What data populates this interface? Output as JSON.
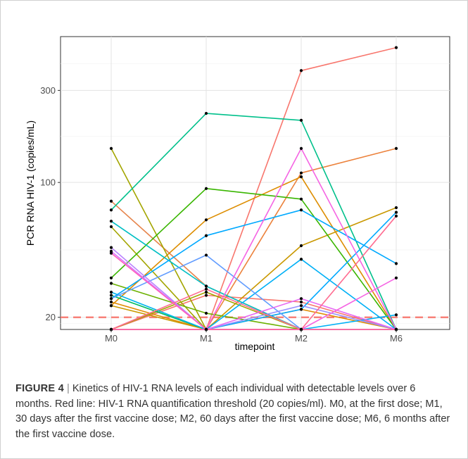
{
  "chart_data": {
    "type": "line",
    "xlabel": "timepoint",
    "ylabel": "PCR RNA HIV-1 (copies/mL)",
    "y_scale": "log10",
    "ylim": [
      17.3,
      570
    ],
    "y_ticks": [
      20,
      100,
      300
    ],
    "categories": [
      "M0",
      "M1",
      "M2",
      "M6"
    ],
    "grid": true,
    "threshold": {
      "value": 20,
      "color": "#F8766D",
      "style": "dashed"
    },
    "series": [
      {
        "color": "#F8766D",
        "values": [
          17.3,
          17.3,
          380,
          500
        ]
      },
      {
        "color": "#F8766D",
        "values": [
          17.3,
          26,
          24,
          17.3
        ]
      },
      {
        "color": "#EC823C",
        "values": [
          17.3,
          17.3,
          112,
          150
        ]
      },
      {
        "color": "#E6844B",
        "values": [
          80,
          29,
          17.3,
          17.3
        ]
      },
      {
        "color": "#DD8D00",
        "values": [
          23,
          64,
          107,
          17.3
        ]
      },
      {
        "color": "#E08B00",
        "values": [
          24,
          17.3,
          22,
          17.3
        ]
      },
      {
        "color": "#C99800",
        "values": [
          23,
          17.3,
          47,
          74
        ]
      },
      {
        "color": "#A3A500",
        "values": [
          150,
          17.3,
          17.3,
          17.3
        ]
      },
      {
        "color": "#A3A500",
        "values": [
          59,
          17.3,
          17.3,
          17.3
        ]
      },
      {
        "color": "#A3A500",
        "values": [
          17.3,
          27,
          17.3,
          17.3
        ]
      },
      {
        "color": "#6BB100",
        "values": [
          30,
          21,
          17.3,
          17.3
        ]
      },
      {
        "color": "#39B600",
        "values": [
          32,
          93,
          82,
          17.3
        ]
      },
      {
        "color": "#00BA38",
        "values": [
          17.3,
          17.3,
          17.3,
          17.3
        ]
      },
      {
        "color": "#00BD5F",
        "values": [
          26,
          17.3,
          17.3,
          17.3
        ]
      },
      {
        "color": "#00C08B",
        "values": [
          72,
          228,
          210,
          17.3
        ]
      },
      {
        "color": "#00BFC4",
        "values": [
          63,
          29,
          17.3,
          17.3
        ]
      },
      {
        "color": "#00B4EF",
        "values": [
          27,
          17.3,
          17.3,
          17.3
        ]
      },
      {
        "color": "#00A9FF",
        "values": [
          25,
          53,
          72,
          38
        ]
      },
      {
        "color": "#00A9FF",
        "values": [
          17.3,
          17.3,
          22,
          70
        ]
      },
      {
        "color": "#00B0F6",
        "values": [
          17.3,
          17.3,
          40,
          17.3
        ]
      },
      {
        "color": "#00B0F6",
        "values": [
          17.3,
          17.3,
          17.3,
          20.6
        ]
      },
      {
        "color": "#619CFF",
        "values": [
          25,
          42,
          17.3,
          17.3
        ]
      },
      {
        "color": "#9590FF",
        "values": [
          17.3,
          17.3,
          23,
          17.3
        ]
      },
      {
        "color": "#B983FF",
        "values": [
          46,
          17.3,
          17.3,
          17.3
        ]
      },
      {
        "color": "#DB72FB",
        "values": [
          44,
          17.3,
          17.3,
          17.3
        ]
      },
      {
        "color": "#E76BF3",
        "values": [
          17.3,
          17.3,
          25,
          17.3
        ]
      },
      {
        "color": "#F564E3",
        "values": [
          17.3,
          17.3,
          150,
          17.3
        ]
      },
      {
        "color": "#F564E3",
        "values": [
          17.3,
          17.3,
          17.3,
          32
        ]
      },
      {
        "color": "#FF62BC",
        "values": [
          43,
          17.3,
          17.3,
          17.3
        ]
      },
      {
        "color": "#FF6C91",
        "values": [
          17.3,
          28,
          17.3,
          17.3
        ]
      },
      {
        "color": "#FF6C91",
        "values": [
          17.3,
          17.3,
          17.3,
          67
        ]
      }
    ]
  },
  "caption": {
    "label": "FIGURE 4",
    "separator": "|",
    "text": "Kinetics of HIV-1 RNA levels of each individual with detectable levels over 6 months. Red line: HIV-1 RNA quantification threshold (20 copies/ml). M0, at the first dose; M1, 30 days after the first vaccine dose; M2, 60 days after the first vaccine dose; M6, 6 months after the first vaccine dose."
  }
}
